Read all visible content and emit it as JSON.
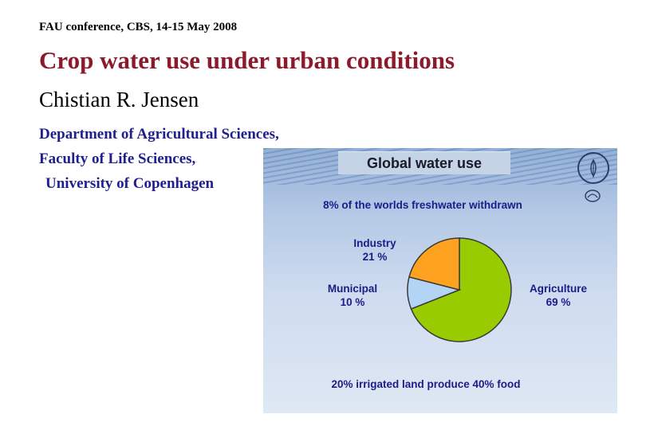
{
  "header": {
    "conference": "FAU conference, CBS, 14-15 May 2008",
    "title": "Crop water use under urban conditions",
    "author": "Chistian R. Jensen",
    "affiliation": [
      "Department of Agricultural Sciences,",
      "Faculty of Life Sciences,",
      "University of Copenhagen"
    ]
  },
  "chart_data": {
    "type": "pie",
    "title": "Global water use",
    "subtitle": "8% of the worlds freshwater withdrawn",
    "footer": "20% irrigated land produce 40% food",
    "slices": [
      {
        "label": "Agriculture",
        "value_label": "69 %",
        "value": 69,
        "color": "#99cc00"
      },
      {
        "label": "Municipal",
        "value_label": "10 %",
        "value": 10,
        "color": "#b3d4f5"
      },
      {
        "label": "Industry",
        "value_label": "21 %",
        "value": 21,
        "color": "#ffa21f"
      }
    ]
  },
  "colors": {
    "title": "#8b1a2b",
    "affiliation": "#1f1f8f",
    "slide_text": "#1c1c88"
  },
  "icons": [
    "fao-logo-icon",
    "fao-small-emblem-icon"
  ]
}
